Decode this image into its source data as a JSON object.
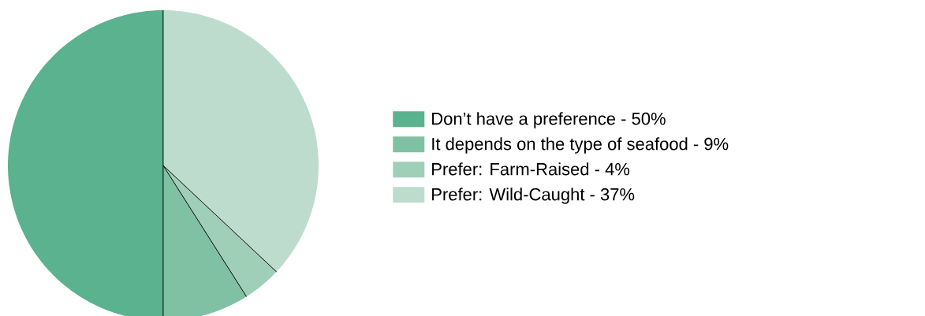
{
  "chart_data": {
    "type": "pie",
    "categories": [
      "Don’t have a preference - 50%",
      "It depends on the type of seafood - 9%",
      "Prefer: Farm-Raised - 4%",
      "Prefer: Wild-Caught - 37%"
    ],
    "values": [
      50,
      9,
      4,
      37
    ],
    "colors": [
      "#5bb28f",
      "#80c1a3",
      "#a0cfb8",
      "#bedcce"
    ],
    "legend": "right"
  }
}
